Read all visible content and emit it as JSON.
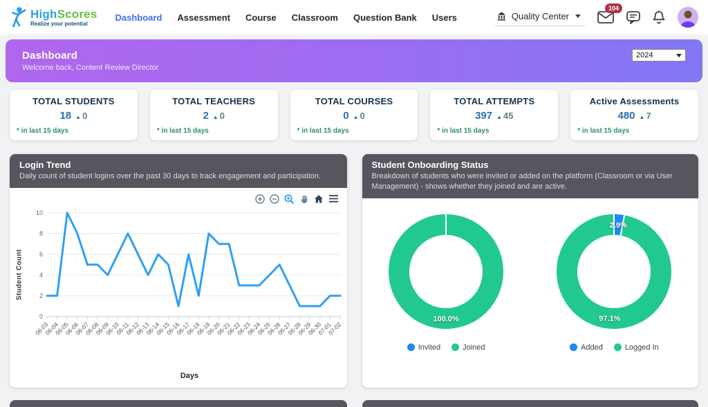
{
  "brand": {
    "name_part1": "High",
    "name_part2": "Scores",
    "tagline": "Realize your potential"
  },
  "nav": {
    "items": [
      {
        "label": "Dashboard",
        "active": true
      },
      {
        "label": "Assessment",
        "active": false
      },
      {
        "label": "Course",
        "active": false
      },
      {
        "label": "Classroom",
        "active": false
      },
      {
        "label": "Question Bank",
        "active": false
      },
      {
        "label": "Users",
        "active": false
      }
    ]
  },
  "topbar": {
    "institution": "Quality Center",
    "mail_badge": "104",
    "icons": [
      "institution-icon",
      "mail-icon",
      "chat-icon",
      "bell-icon",
      "avatar"
    ]
  },
  "banner": {
    "title": "Dashboard",
    "subtitle": "Welcome back, Content Review Director",
    "year": "2024"
  },
  "stats": {
    "note": "* in last 15 days",
    "cards": [
      {
        "title": "TOTAL STUDENTS",
        "value": "18",
        "delta": "0"
      },
      {
        "title": "TOTAL TEACHERS",
        "value": "2",
        "delta": "0"
      },
      {
        "title": "TOTAL COURSES",
        "value": "0",
        "delta": "0"
      },
      {
        "title": "TOTAL ATTEMPTS",
        "value": "397",
        "delta": "45"
      },
      {
        "title": "Active Assessments",
        "value": "480",
        "delta": "7"
      }
    ]
  },
  "login_trend": {
    "title": "Login Trend",
    "description": "Daily count of student logins over the past 30 days to track engagement and participation.",
    "toolbar_icons": [
      "zoom-in-icon",
      "zoom-out-icon",
      "selection-zoom-icon",
      "pan-icon",
      "home-icon",
      "menu-icon"
    ]
  },
  "onboarding": {
    "title": "Student Onboarding Status",
    "description": "Breakdown of students who were invited or added on the platform (Classroom or via User Management) - shows whether they joined and are active."
  },
  "chart_data": [
    {
      "type": "line",
      "title": "Login Trend",
      "xlabel": "Days",
      "ylabel": "Student Count",
      "categories": [
        "06-03",
        "06-04",
        "06-05",
        "06-06",
        "06-07",
        "06-08",
        "06-09",
        "06-10",
        "06-11",
        "06-12",
        "06-13",
        "06-14",
        "06-15",
        "06-16",
        "06-17",
        "06-18",
        "06-19",
        "06-20",
        "06-21",
        "06-22",
        "06-23",
        "06-24",
        "06-25",
        "06-26",
        "06-27",
        "06-28",
        "06-29",
        "06-30",
        "07-01",
        "07-02"
      ],
      "values": [
        2,
        2,
        10,
        8,
        5,
        5,
        4,
        6,
        8,
        6,
        4,
        6,
        5,
        1,
        6,
        2,
        8,
        7,
        7,
        3,
        3,
        3,
        4,
        5,
        3,
        1,
        1,
        1,
        2,
        2
      ],
      "ylim": [
        0,
        10
      ],
      "yticks": [
        0,
        2,
        4,
        6,
        8,
        10
      ],
      "grid": true,
      "line_color": "#2f9ff2"
    },
    {
      "type": "pie",
      "subtype": "donut",
      "labels": [
        "Invited",
        "Joined"
      ],
      "values": [
        0.0,
        100.0
      ],
      "shown_slice_labels": [
        "100.0%"
      ],
      "colors": [
        "#1e88f5",
        "#22c98e"
      ],
      "legend_position": "bottom"
    },
    {
      "type": "pie",
      "subtype": "donut",
      "labels": [
        "Added",
        "Logged In"
      ],
      "values": [
        2.9,
        97.1
      ],
      "shown_slice_labels": [
        "2.9%",
        "97.1%"
      ],
      "colors": [
        "#1e88f5",
        "#22c98e"
      ],
      "legend_position": "bottom"
    }
  ],
  "colors": {
    "accent_blue": "#3d6ff2",
    "line_blue": "#2f9ff2",
    "donut_green": "#22c98e",
    "donut_blue": "#1e88f5",
    "card_header": "#55565e",
    "banner_gradient_from": "#b066ef",
    "banner_gradient_to": "#8177f4",
    "stat_value_blue": "#2a6fb0",
    "stat_green": "#2e8b6b",
    "badge_red": "#ab3446"
  }
}
